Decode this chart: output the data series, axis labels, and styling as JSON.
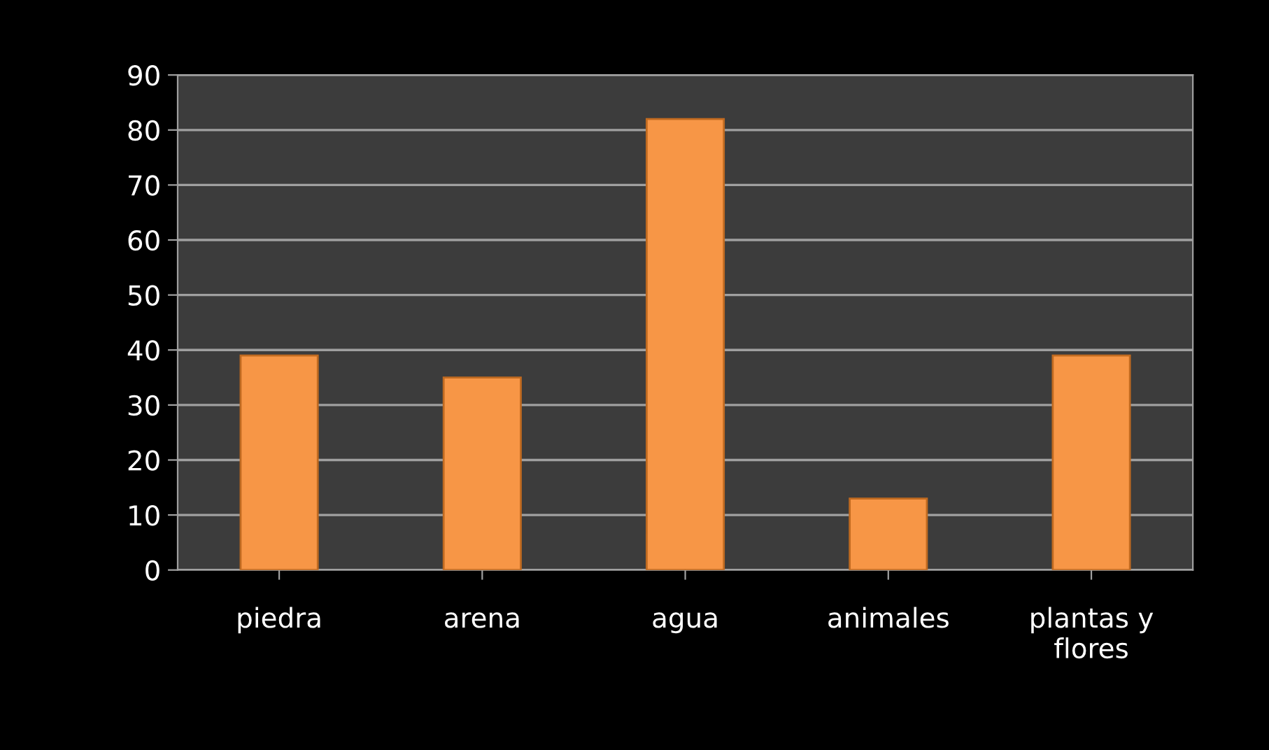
{
  "chart_data": {
    "type": "bar",
    "categories": [
      "piedra",
      "arena",
      "agua",
      "animales",
      "plantas y\nflores"
    ],
    "values": [
      39,
      35,
      82,
      13,
      39
    ],
    "color": "#f79646",
    "ylim": [
      0,
      90
    ],
    "yticks": [
      0,
      10,
      20,
      30,
      40,
      50,
      60,
      70,
      80,
      90
    ],
    "grid": "y",
    "legend": false
  }
}
